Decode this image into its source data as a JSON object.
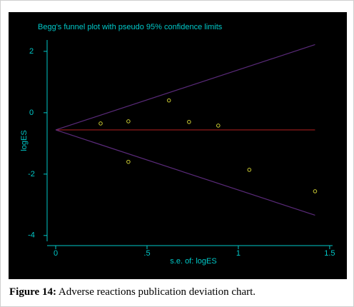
{
  "chart_data": {
    "type": "scatter",
    "title": "Begg's funnel plot with pseudo 95% confidence limits",
    "x_label": "s.e. of: logES",
    "y_label": "logES",
    "xlim": [
      -0.047,
      1.516
    ],
    "ylim": [
      -4.19,
      2.37
    ],
    "xticks": [
      0,
      {
        "value": 0.5,
        "label": ".5"
      },
      1,
      1.5
    ],
    "yticks": [
      -4,
      -2,
      0,
      2
    ],
    "axis_color": "#00c8c8",
    "background": "#000000",
    "series": [
      {
        "style": "points",
        "color": "#c8c832",
        "x": [
          0.246,
          0.398,
          0.398,
          0.62,
          0.73,
          0.89,
          1.06,
          1.42
        ],
        "values": [
          -0.35,
          -0.28,
          -1.6,
          0.4,
          -0.3,
          -0.42,
          -1.86,
          -2.56
        ]
      },
      {
        "style": "line",
        "color": "#a01e1e",
        "x": [
          0,
          1.42
        ],
        "values": [
          -0.56,
          -0.56
        ]
      },
      {
        "style": "line",
        "color": "#5a2a7a",
        "x": [
          0,
          1.42
        ],
        "values": [
          -0.56,
          2.22
        ]
      },
      {
        "style": "line",
        "color": "#5a2a7a",
        "x": [
          0,
          1.42
        ],
        "values": [
          -0.56,
          -3.34
        ]
      }
    ]
  },
  "caption": {
    "label": "Figure 14:",
    "text": "Adverse reactions publication deviation chart."
  }
}
